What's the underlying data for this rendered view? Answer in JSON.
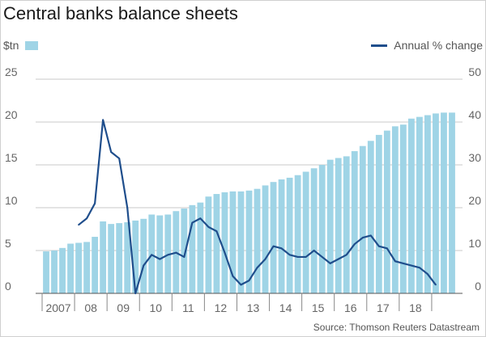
{
  "title": "Central banks balance sheets",
  "legend": {
    "left_label": "$tn",
    "right_label": "Annual % change"
  },
  "source": "Source: Thomson Reuters Datastream",
  "colors": {
    "bars": "#9fd4e6",
    "line": "#1f4e8c",
    "grid": "#c8c8c8"
  },
  "chart_data": {
    "type": "bar",
    "title": "Central banks balance sheets",
    "y_left": {
      "unit": "$tn",
      "range": [
        0,
        25
      ],
      "ticks": [
        "25",
        "20",
        "15",
        "10",
        "5",
        "0"
      ]
    },
    "y_right": {
      "range": [
        0,
        50
      ],
      "ticks": [
        "50",
        "40",
        "30",
        "20",
        "10",
        "0"
      ]
    },
    "x_tick_labels": [
      "2007",
      "08",
      "09",
      "10",
      "11",
      "12",
      "13",
      "14",
      "15",
      "16",
      "17",
      "18"
    ],
    "grid": true,
    "series": [
      {
        "name": "$tn",
        "type": "bar",
        "axis": "left",
        "values": [
          4.9,
          5.0,
          5.3,
          5.8,
          5.9,
          6.0,
          6.6,
          8.4,
          8.1,
          8.2,
          8.3,
          8.5,
          8.7,
          9.2,
          9.1,
          9.2,
          9.6,
          9.9,
          10.3,
          10.6,
          11.3,
          11.6,
          11.8,
          11.9,
          11.9,
          12.0,
          12.2,
          12.6,
          13.0,
          13.3,
          13.5,
          13.8,
          14.2,
          14.6,
          15.0,
          15.6,
          15.8,
          16.0,
          16.6,
          17.2,
          17.8,
          18.5,
          19.0,
          19.5,
          19.7,
          20.4,
          20.6,
          20.8,
          21.0,
          21.1,
          21.1
        ]
      },
      {
        "name": "Annual % change",
        "type": "line",
        "axis": "right",
        "x_index": [
          4,
          5,
          6,
          7,
          8,
          9,
          10,
          11,
          12,
          13,
          14,
          15,
          16,
          17,
          18,
          19,
          20,
          21,
          22,
          23,
          24,
          25,
          26,
          27,
          28,
          29,
          30,
          31,
          32,
          33,
          34,
          35,
          36,
          37,
          38,
          39,
          40,
          41,
          42,
          43,
          44,
          45,
          46,
          47,
          48
        ],
        "values": [
          16,
          17.5,
          21,
          40.5,
          33,
          31.5,
          20,
          0,
          6.5,
          9,
          8,
          9,
          9.5,
          8.5,
          16.5,
          17.5,
          15.5,
          14.5,
          9.5,
          4,
          2,
          3,
          6,
          8,
          11,
          10.5,
          9,
          8.5,
          8.5,
          10,
          8.5,
          7,
          8,
          9,
          11.5,
          13,
          13.5,
          11,
          10.5,
          7.5,
          7,
          6.5,
          6,
          4.5,
          2
        ]
      }
    ]
  }
}
